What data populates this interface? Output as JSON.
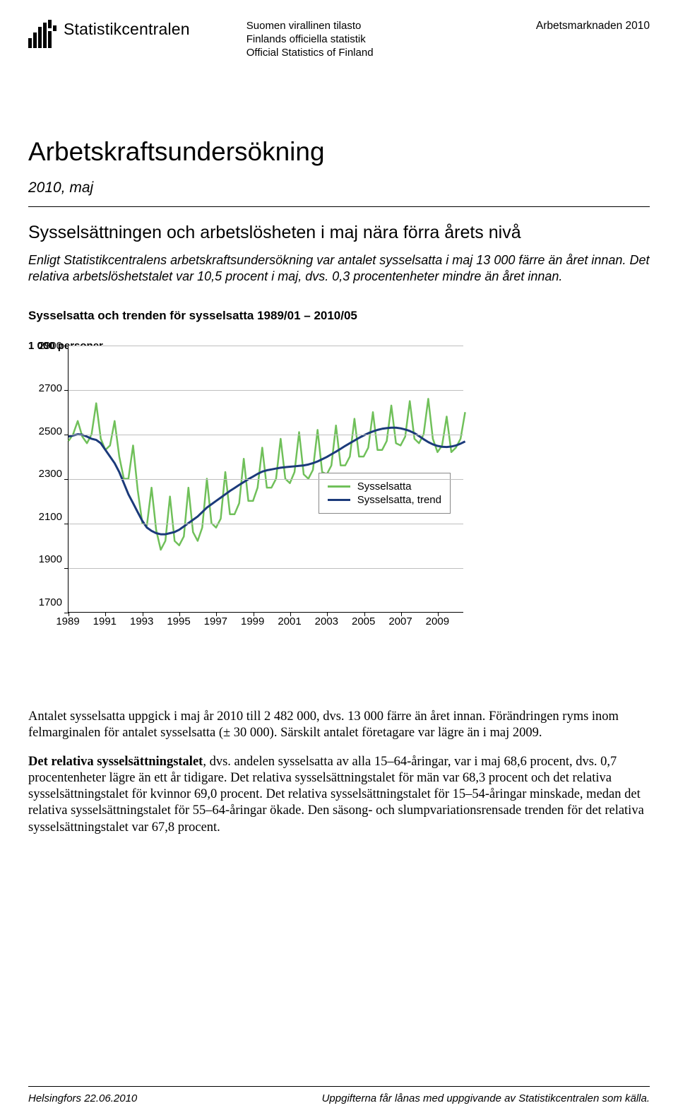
{
  "header": {
    "org_name": "Statistikcentralen",
    "official_lines": [
      "Suomen virallinen tilasto",
      "Finlands officiella statistik",
      "Official Statistics of Finland"
    ],
    "category": "Arbetsmarknaden 2010"
  },
  "title": "Arbetskraftsundersökning",
  "subtitle": "2010, maj",
  "headline": "Sysselsättningen och arbetslösheten i maj nära förra årets nivå",
  "intro": "Enligt Statistikcentralens arbetskraftsundersökning var antalet sysselsatta i maj 13 000 färre än året innan. Det relativa arbetslöshetstalet var 10,5 procent i maj, dvs. 0,3 procentenheter mindre än året innan.",
  "chart": {
    "title": "Sysselsatta och trenden för sysselsatta 1989/01 – 2010/05",
    "yaxis_title": "1 000 personer",
    "type": "line",
    "background_color": "#ffffff",
    "grid_color": "#bfbfbf",
    "axis_color": "#000000",
    "ylim": [
      1700,
      2900
    ],
    "ytick_step": 200,
    "yticks": [
      1700,
      1900,
      2100,
      2300,
      2500,
      2700,
      2900
    ],
    "xlim": [
      1989,
      2010.4
    ],
    "xticks": [
      1989,
      1991,
      1993,
      1995,
      1997,
      1999,
      2001,
      2003,
      2005,
      2007,
      2009
    ],
    "label_fontsize": 15,
    "title_fontsize": 17,
    "legend": {
      "position": "center-right-inside",
      "items": [
        {
          "label": "Sysselsatta",
          "color": "#70c05a",
          "width": 3
        },
        {
          "label": "Sysselsatta, trend",
          "color": "#1b3a7a",
          "width": 3
        }
      ]
    },
    "series": [
      {
        "name": "Sysselsatta",
        "color": "#70c05a",
        "line_width": 2.5,
        "x_start": 1989.0,
        "x_step": 0.25,
        "values": [
          2470,
          2500,
          2560,
          2490,
          2460,
          2500,
          2640,
          2480,
          2430,
          2450,
          2560,
          2400,
          2300,
          2300,
          2450,
          2250,
          2100,
          2090,
          2260,
          2070,
          1980,
          2020,
          2220,
          2020,
          2000,
          2040,
          2260,
          2060,
          2020,
          2080,
          2300,
          2100,
          2080,
          2120,
          2330,
          2140,
          2140,
          2190,
          2390,
          2200,
          2200,
          2260,
          2440,
          2260,
          2260,
          2300,
          2480,
          2300,
          2280,
          2330,
          2510,
          2320,
          2300,
          2340,
          2520,
          2330,
          2320,
          2360,
          2540,
          2360,
          2360,
          2400,
          2570,
          2400,
          2400,
          2440,
          2600,
          2430,
          2430,
          2470,
          2630,
          2460,
          2450,
          2490,
          2650,
          2480,
          2460,
          2500,
          2660,
          2480,
          2420,
          2450,
          2580,
          2420,
          2440,
          2480,
          2600
        ]
      },
      {
        "name": "Sysselsatta, trend",
        "color": "#1b3a7a",
        "line_width": 3,
        "x_start": 1989.0,
        "x_step": 0.25,
        "values": [
          2490,
          2495,
          2500,
          2498,
          2490,
          2480,
          2475,
          2460,
          2430,
          2400,
          2370,
          2330,
          2280,
          2230,
          2190,
          2150,
          2110,
          2080,
          2065,
          2055,
          2050,
          2050,
          2055,
          2060,
          2070,
          2085,
          2100,
          2115,
          2130,
          2150,
          2170,
          2185,
          2200,
          2215,
          2230,
          2245,
          2258,
          2272,
          2285,
          2298,
          2310,
          2322,
          2332,
          2338,
          2342,
          2346,
          2350,
          2352,
          2354,
          2356,
          2358,
          2360,
          2364,
          2370,
          2378,
          2388,
          2398,
          2410,
          2422,
          2435,
          2448,
          2460,
          2472,
          2484,
          2495,
          2505,
          2513,
          2520,
          2525,
          2528,
          2530,
          2530,
          2527,
          2522,
          2515,
          2505,
          2492,
          2478,
          2465,
          2455,
          2448,
          2444,
          2443,
          2445,
          2450,
          2458,
          2468
        ]
      }
    ]
  },
  "para1": "Antalet sysselsatta uppgick i maj år 2010 till 2 482 000, dvs. 13 000 färre än året innan. Förändringen ryms inom felmarginalen för antalet sysselsatta (± 30 000). Särskilt antalet företagare var lägre än i maj 2009.",
  "para2": "Det relativa sysselsättningstalet, dvs. andelen sysselsatta av alla 15–64-åringar, var i maj 68,6 procent, dvs. 0,7 procentenheter lägre än ett år tidigare. Det relativa sysselsättningstalet för män var 68,3 procent och det relativa sysselsättningstalet för kvinnor 69,0 procent. Det relativa sysselsättningstalet för 15–54-åringar minskade, medan det relativa sysselsättningstalet för 55–64-åringar ökade. Den säsong- och slumpvariationsrensade trenden för det relativa sysselsättningstalet var 67,8 procent.",
  "para2_boldlead": "Det relativa sysselsättningstalet",
  "footer": {
    "left": "Helsingfors 22.06.2010",
    "right": "Uppgifterna får lånas med uppgivande av Statistikcentralen som källa."
  },
  "colors": {
    "text": "#000000",
    "background": "#ffffff"
  }
}
